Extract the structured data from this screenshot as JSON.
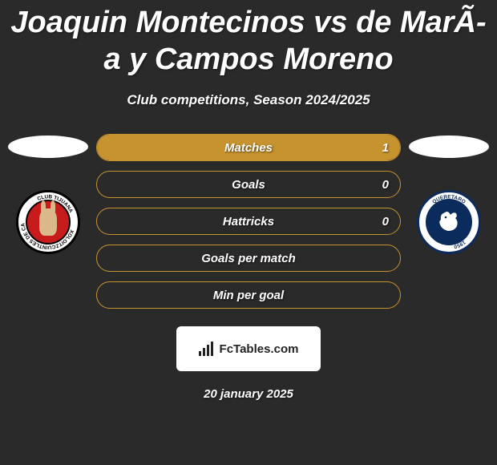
{
  "title": "Joaquin Montecinos vs de MarÃ­a y Campos Moreno",
  "subtitle": "Club competitions, Season 2024/2025",
  "date": "20 january 2025",
  "brand": "FcTables.com",
  "colors": {
    "pill_border": "#c7932f",
    "pill_fill": "#c7932f",
    "background": "#2a2a2a"
  },
  "left_club": {
    "name": "Club Tijuana"
  },
  "right_club": {
    "name": "Queretaro"
  },
  "stats": [
    {
      "label": "Matches",
      "right_value": "1",
      "fill_pct": 100
    },
    {
      "label": "Goals",
      "right_value": "0",
      "fill_pct": 0
    },
    {
      "label": "Hattricks",
      "right_value": "0",
      "fill_pct": 0
    },
    {
      "label": "Goals per match",
      "right_value": "",
      "fill_pct": 0
    },
    {
      "label": "Min per goal",
      "right_value": "",
      "fill_pct": 0
    }
  ]
}
